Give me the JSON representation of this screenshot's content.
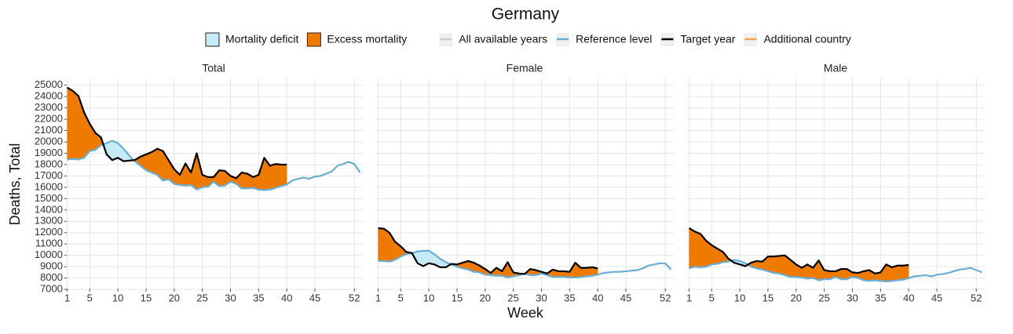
{
  "title": "Germany",
  "y_label": "Deaths, Total",
  "x_label": "Week",
  "legend": [
    {
      "name": "Mortality deficit",
      "color": "#c5ebf7",
      "kind": "fill"
    },
    {
      "name": "Excess mortality",
      "color": "#ef7a00",
      "kind": "fill"
    },
    {
      "name": "All available years",
      "color": "#cccccc",
      "kind": "line"
    },
    {
      "name": "Additional country",
      "color": "#f5a04a",
      "kind": "line"
    }
  ],
  "chart_data": [
    {
      "type": "line",
      "title": "Total",
      "x": [
        1,
        2,
        3,
        4,
        5,
        6,
        7,
        8,
        9,
        10,
        11,
        12,
        13,
        14,
        15,
        16,
        17,
        18,
        19,
        20,
        21,
        22,
        23,
        24,
        25,
        26,
        27,
        28,
        29,
        30,
        31,
        32,
        33,
        34,
        35,
        36,
        37,
        38,
        39,
        40,
        41,
        42,
        43,
        44,
        45,
        46,
        47,
        48,
        49,
        50,
        51,
        52,
        53
      ],
      "xlim": [
        0.5,
        53.5
      ],
      "xticks": [
        1,
        5,
        10,
        15,
        20,
        25,
        30,
        35,
        40,
        45,
        52
      ],
      "ylim": [
        6800,
        25600
      ],
      "yticks": [
        7000,
        8000,
        9000,
        10000,
        11000,
        12000,
        13000,
        14000,
        15000,
        16000,
        17000,
        18000,
        19000,
        20000,
        21000,
        22000,
        23000,
        24000,
        25000
      ],
      "grid": true,
      "series": [
        {
          "name": "Reference level",
          "color": "#6aaed6",
          "values": [
            18450,
            18500,
            18450,
            18600,
            19200,
            19300,
            19700,
            19900,
            20100,
            19900,
            19400,
            18800,
            18300,
            17900,
            17500,
            17300,
            17100,
            16600,
            16700,
            16300,
            16200,
            16150,
            16200,
            15800,
            16000,
            16050,
            16500,
            16100,
            16150,
            16500,
            16300,
            15900,
            15900,
            15950,
            15800,
            15750,
            15800,
            15950,
            16100,
            16250,
            16600,
            16750,
            16850,
            16750,
            16950,
            17000,
            17200,
            17400,
            17900,
            18050,
            18250,
            18050,
            17300
          ]
        },
        {
          "name": "Target year",
          "color": "#000000",
          "values": [
            24800,
            24500,
            24050,
            22600,
            21600,
            20800,
            20400,
            18900,
            18400,
            18600,
            18300,
            18350,
            18400,
            18700,
            18900,
            19100,
            19400,
            19200,
            18400,
            17600,
            17100,
            18100,
            17300,
            19000,
            17100,
            16900,
            16900,
            17500,
            17450,
            17000,
            16800,
            17300,
            17200,
            16900,
            17100,
            18600,
            17900,
            18050,
            18000,
            18000,
            null,
            null,
            null,
            null,
            null,
            null,
            null,
            null,
            null,
            null,
            null,
            null,
            null
          ]
        }
      ]
    },
    {
      "type": "line",
      "title": "Female",
      "x": [
        1,
        2,
        3,
        4,
        5,
        6,
        7,
        8,
        9,
        10,
        11,
        12,
        13,
        14,
        15,
        16,
        17,
        18,
        19,
        20,
        21,
        22,
        23,
        24,
        25,
        26,
        27,
        28,
        29,
        30,
        31,
        32,
        33,
        34,
        35,
        36,
        37,
        38,
        39,
        40,
        41,
        42,
        43,
        44,
        45,
        46,
        47,
        48,
        49,
        50,
        51,
        52,
        53
      ],
      "xlim": [
        0.5,
        53.5
      ],
      "xticks": [
        1,
        5,
        10,
        15,
        20,
        25,
        30,
        35,
        40,
        45,
        52
      ],
      "ylim": [
        6800,
        25600
      ],
      "yticks": [
        7000,
        8000,
        9000,
        10000,
        11000,
        12000,
        13000,
        14000,
        15000,
        16000,
        17000,
        18000,
        19000,
        20000,
        21000,
        22000,
        23000,
        24000,
        25000
      ],
      "grid": true,
      "series": [
        {
          "name": "Reference level",
          "color": "#6aaed6",
          "values": [
            9500,
            9500,
            9450,
            9600,
            9900,
            10100,
            10200,
            10350,
            10400,
            10400,
            10100,
            9700,
            9400,
            9200,
            9000,
            8850,
            8750,
            8550,
            8500,
            8300,
            8250,
            8200,
            8200,
            8050,
            8150,
            8250,
            8400,
            8250,
            8250,
            8400,
            8250,
            8100,
            8100,
            8100,
            8050,
            8050,
            8100,
            8150,
            8200,
            8300,
            8450,
            8500,
            8550,
            8550,
            8600,
            8650,
            8700,
            8850,
            9100,
            9200,
            9300,
            9300,
            8750
          ]
        },
        {
          "name": "Target year",
          "color": "#000000",
          "values": [
            12400,
            12350,
            12000,
            11200,
            10800,
            10300,
            10200,
            9300,
            9050,
            9300,
            9200,
            8950,
            8950,
            9250,
            9200,
            9350,
            9500,
            9350,
            9100,
            8800,
            8450,
            8900,
            8600,
            9400,
            8500,
            8400,
            8350,
            8800,
            8700,
            8550,
            8400,
            8750,
            8600,
            8600,
            8550,
            9350,
            8900,
            8900,
            8950,
            8850,
            null,
            null,
            null,
            null,
            null,
            null,
            null,
            null,
            null,
            null,
            null,
            null,
            null
          ]
        }
      ]
    },
    {
      "type": "line",
      "title": "Male",
      "x": [
        1,
        2,
        3,
        4,
        5,
        6,
        7,
        8,
        9,
        10,
        11,
        12,
        13,
        14,
        15,
        16,
        17,
        18,
        19,
        20,
        21,
        22,
        23,
        24,
        25,
        26,
        27,
        28,
        29,
        30,
        31,
        32,
        33,
        34,
        35,
        36,
        37,
        38,
        39,
        40,
        41,
        42,
        43,
        44,
        45,
        46,
        47,
        48,
        49,
        50,
        51,
        52,
        53
      ],
      "xlim": [
        0.5,
        53.5
      ],
      "xticks": [
        1,
        5,
        10,
        15,
        20,
        25,
        30,
        35,
        40,
        45,
        52
      ],
      "ylim": [
        6800,
        25600
      ],
      "yticks": [
        7000,
        8000,
        9000,
        10000,
        11000,
        12000,
        13000,
        14000,
        15000,
        16000,
        17000,
        18000,
        19000,
        20000,
        21000,
        22000,
        23000,
        24000,
        25000
      ],
      "grid": true,
      "series": [
        {
          "name": "Reference level",
          "color": "#6aaed6",
          "values": [
            8850,
            9000,
            8950,
            9000,
            9200,
            9250,
            9400,
            9450,
            9600,
            9500,
            9300,
            9000,
            8850,
            8750,
            8600,
            8450,
            8400,
            8250,
            8100,
            8100,
            8050,
            7950,
            8000,
            7800,
            7900,
            7900,
            8100,
            7900,
            7900,
            8100,
            8000,
            7800,
            7750,
            7800,
            7750,
            7700,
            7750,
            7800,
            7850,
            8000,
            8150,
            8200,
            8250,
            8150,
            8300,
            8350,
            8450,
            8600,
            8750,
            8800,
            8900,
            8700,
            8500
          ]
        },
        {
          "name": "Target year",
          "color": "#000000",
          "values": [
            12400,
            12100,
            11900,
            11300,
            10900,
            10600,
            10300,
            9700,
            9350,
            9200,
            9050,
            9350,
            9500,
            9450,
            9900,
            9900,
            9950,
            10000,
            9600,
            9200,
            8900,
            9200,
            8900,
            9550,
            8700,
            8600,
            8600,
            8800,
            8800,
            8500,
            8450,
            8600,
            8700,
            8400,
            8500,
            9200,
            8950,
            9100,
            9100,
            9150,
            null,
            null,
            null,
            null,
            null,
            null,
            null,
            null,
            null,
            null,
            null,
            null,
            null
          ]
        }
      ]
    }
  ]
}
